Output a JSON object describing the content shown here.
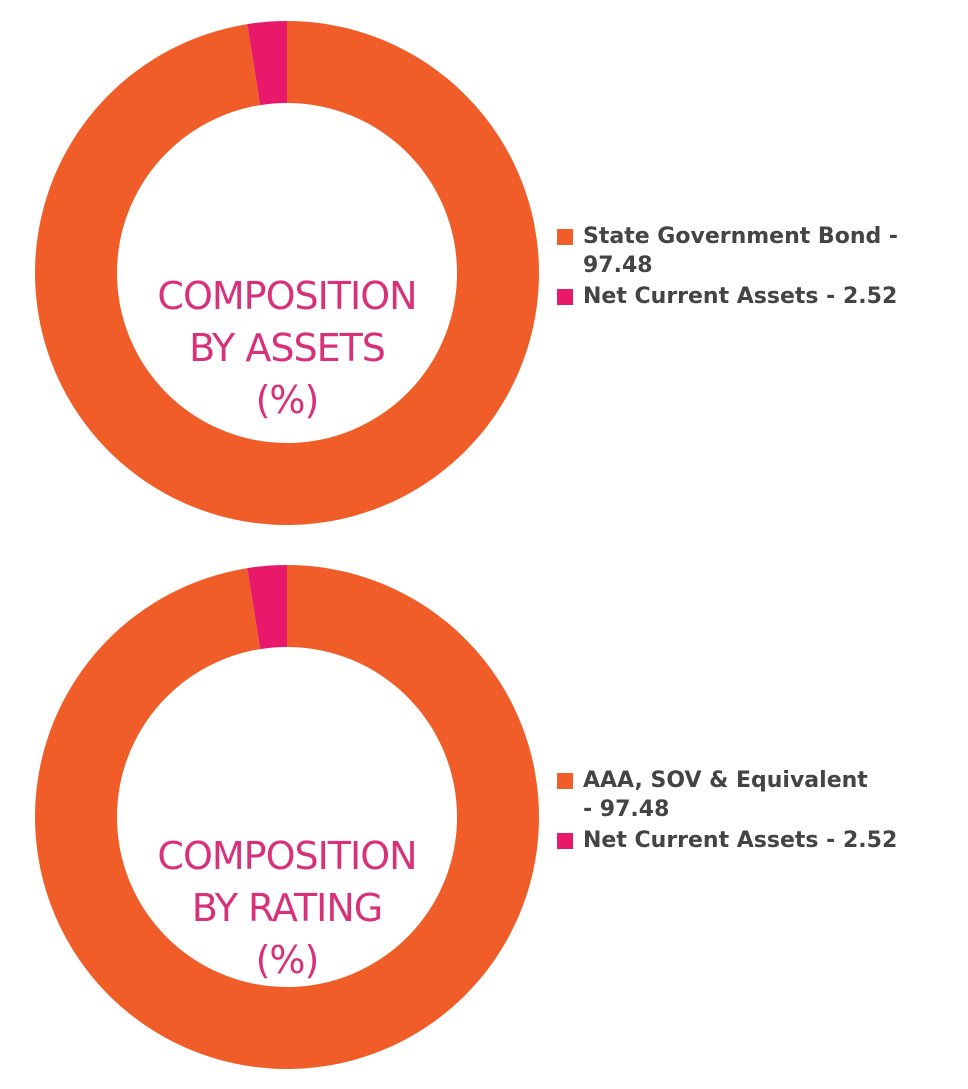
{
  "chart_data": [
    {
      "type": "pie",
      "donut": true,
      "center_title": [
        "COMPOSITION",
        "BY ASSETS",
        "(%)"
      ],
      "slices": [
        {
          "label": "State Government Bond - 97.48",
          "value": 97.48,
          "color": "#f15d28"
        },
        {
          "label": "Net Current Assets - 2.52",
          "value": 2.52,
          "color": "#e8196b"
        }
      ],
      "legend_position": "right"
    },
    {
      "type": "pie",
      "donut": true,
      "center_title": [
        "COMPOSITION",
        "BY RATING",
        "(%)"
      ],
      "slices": [
        {
          "label": "AAA, SOV & Equivalent - 97.48",
          "value": 97.48,
          "color": "#f15d28"
        },
        {
          "label": "Net Current Assets - 2.52",
          "value": 2.52,
          "color": "#e8196b"
        }
      ],
      "legend_position": "right"
    }
  ],
  "colors": {
    "title": "#d8317a",
    "legend_text": "#444444"
  }
}
